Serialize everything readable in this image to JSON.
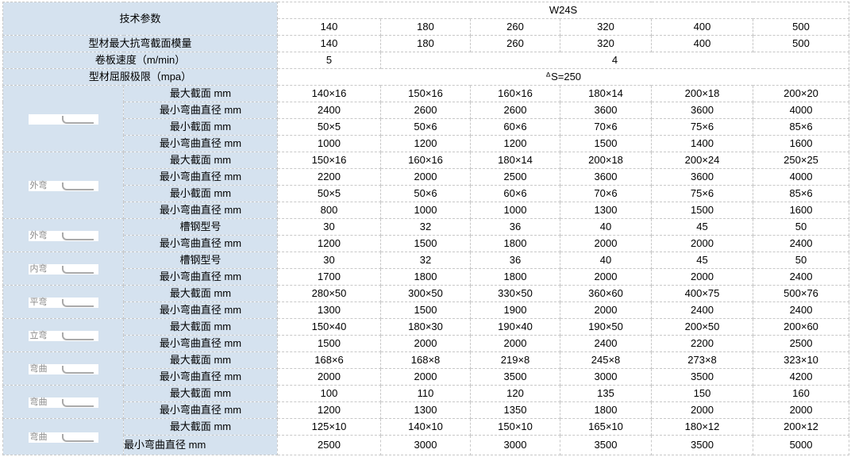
{
  "header": {
    "title": "技术参数",
    "model": "W24S",
    "sizes": [
      "140",
      "180",
      "260",
      "320",
      "400",
      "500"
    ]
  },
  "general_rows": [
    {
      "label": "型材最大抗弯截面模量",
      "values": [
        "140",
        "180",
        "260",
        "320",
        "400",
        "500"
      ]
    },
    {
      "label": "卷板速度（m/min）",
      "values": [
        "5",
        "4"
      ]
    },
    {
      "label": "型材屈服极限（mpa）",
      "values": [
        "ᐞS=250"
      ]
    }
  ],
  "groups": [
    {
      "image_label": "",
      "rows": [
        {
          "label": "最大截面 mm",
          "values": [
            "140×16",
            "150×16",
            "160×16",
            "180×14",
            "200×18",
            "200×20"
          ]
        },
        {
          "label": "最小弯曲直径 mm",
          "values": [
            "2400",
            "2600",
            "2600",
            "3600",
            "3600",
            "4000"
          ]
        },
        {
          "label": "最小截面 mm",
          "values": [
            "50×5",
            "50×6",
            "60×6",
            "70×6",
            "75×6",
            "85×6"
          ]
        },
        {
          "label": "最小弯曲直径 mm",
          "values": [
            "1000",
            "1200",
            "1200",
            "1500",
            "1400",
            "1600"
          ]
        }
      ]
    },
    {
      "image_label": "外弯",
      "rows": [
        {
          "label": "最大截面 mm",
          "values": [
            "150×16",
            "160×16",
            "180×14",
            "200×18",
            "200×24",
            "250×25"
          ]
        },
        {
          "label": "最小弯曲直径 mm",
          "values": [
            "2200",
            "2000",
            "2500",
            "3600",
            "3600",
            "4000"
          ]
        },
        {
          "label": "最小截面 mm",
          "values": [
            "50×5",
            "50×6",
            "60×6",
            "70×6",
            "75×6",
            "85×6"
          ]
        },
        {
          "label": "最小弯曲直径 mm",
          "values": [
            "800",
            "1000",
            "1000",
            "1300",
            "1500",
            "1600"
          ]
        }
      ]
    },
    {
      "image_label": "外弯",
      "rows": [
        {
          "label": "槽钢型号",
          "values": [
            "30",
            "32",
            "36",
            "40",
            "45",
            "50"
          ]
        },
        {
          "label": "最小弯曲直径 mm",
          "values": [
            "1200",
            "1500",
            "1800",
            "2000",
            "2000",
            "2400"
          ]
        }
      ]
    },
    {
      "image_label": "内弯",
      "rows": [
        {
          "label": "槽钢型号",
          "values": [
            "30",
            "32",
            "36",
            "40",
            "45",
            "50"
          ]
        },
        {
          "label": "最小弯曲直径 mm",
          "values": [
            "1700",
            "1800",
            "1800",
            "2000",
            "2000",
            "2400"
          ]
        }
      ]
    },
    {
      "image_label": "平弯",
      "rows": [
        {
          "label": "最大截面 mm",
          "values": [
            "280×50",
            "300×50",
            "330×50",
            "360×60",
            "400×75",
            "500×76"
          ]
        },
        {
          "label": "最小弯曲直径 mm",
          "values": [
            "1300",
            "1500",
            "1900",
            "2000",
            "2400",
            "2400"
          ]
        }
      ]
    },
    {
      "image_label": "立弯",
      "rows": [
        {
          "label": "最大截面 mm",
          "values": [
            "150×40",
            "180×30",
            "190×40",
            "190×50",
            "200×50",
            "200×60"
          ]
        },
        {
          "label": "最小弯曲直径 mm",
          "values": [
            "1500",
            "2000",
            "2000",
            "2400",
            "2200",
            "2500"
          ]
        }
      ]
    },
    {
      "image_label": "弯曲",
      "rows": [
        {
          "label": "最大截面 mm",
          "values": [
            "168×6",
            "168×8",
            "219×8",
            "245×8",
            "273×8",
            "323×10"
          ]
        },
        {
          "label": "最小弯曲直径 mm",
          "values": [
            "2000",
            "2000",
            "3500",
            "3000",
            "3500",
            "4200"
          ]
        }
      ]
    },
    {
      "image_label": "弯曲",
      "rows": [
        {
          "label": "最大截面 mm",
          "values": [
            "100",
            "110",
            "120",
            "135",
            "150",
            "160"
          ]
        },
        {
          "label": "最小弯曲直径 mm",
          "values": [
            "1200",
            "1300",
            "1350",
            "1800",
            "2000",
            "2000"
          ]
        }
      ]
    },
    {
      "image_label": "弯曲",
      "rows": [
        {
          "label": "最大截面 mm",
          "values": [
            "125×10",
            "140×10",
            "150×10",
            "165×10",
            "180×12",
            "200×12"
          ]
        },
        {
          "label": "最小弯曲直径 mm",
          "values": [
            "2500",
            "3000",
            "3000",
            "3500",
            "3500",
            "5000"
          ]
        }
      ]
    }
  ]
}
